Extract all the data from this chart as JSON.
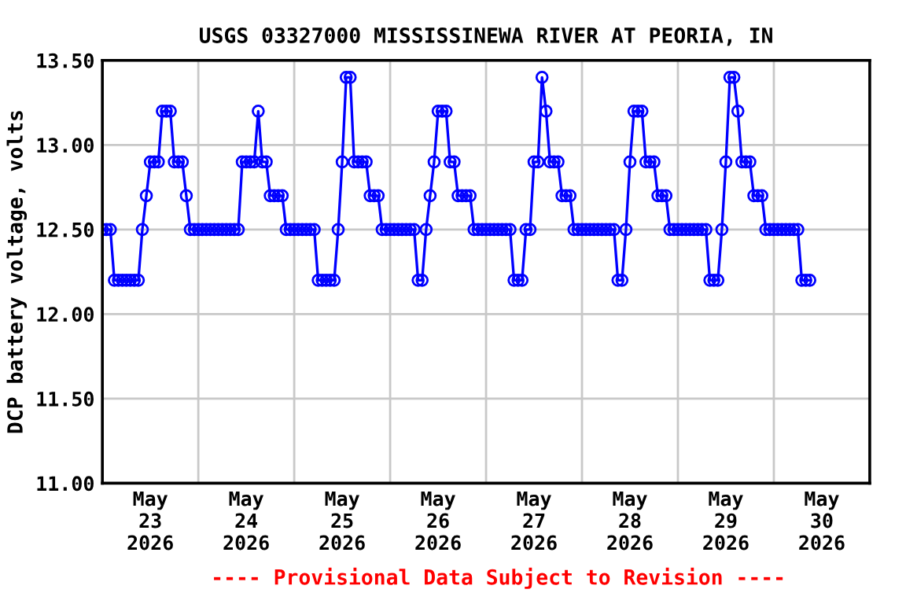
{
  "chart_data": {
    "type": "line",
    "title": "USGS 03327000 MISSISSINEWA RIVER AT PEORIA, IN",
    "ylabel": "DCP battery voltage, volts",
    "annotations": [
      "---- Provisional Data Subject to Revision ----"
    ],
    "xlim": [
      "2026-05-23T00:00",
      "2026-05-31T00:00"
    ],
    "xticks": [
      {
        "value": "2026-05-23T12:00",
        "label": "May\n23\n2026"
      },
      {
        "value": "2026-05-24T12:00",
        "label": "May\n24\n2026"
      },
      {
        "value": "2026-05-25T12:00",
        "label": "May\n25\n2026"
      },
      {
        "value": "2026-05-26T12:00",
        "label": "May\n26\n2026"
      },
      {
        "value": "2026-05-27T12:00",
        "label": "May\n27\n2026"
      },
      {
        "value": "2026-05-28T12:00",
        "label": "May\n28\n2026"
      },
      {
        "value": "2026-05-29T12:00",
        "label": "May\n29\n2026"
      },
      {
        "value": "2026-05-30T12:00",
        "label": "May\n30\n2026"
      },
      {
        "value": "2026-05-24T00:00",
        "label": null
      },
      {
        "value": "2026-05-25T00:00",
        "label": null
      },
      {
        "value": "2026-05-26T00:00",
        "label": null
      },
      {
        "value": "2026-05-27T00:00",
        "label": null
      },
      {
        "value": "2026-05-28T00:00",
        "label": null
      },
      {
        "value": "2026-05-29T00:00",
        "label": null
      },
      {
        "value": "2026-05-30T00:00",
        "label": null
      }
    ],
    "ylim": [
      11,
      13.5
    ],
    "yticks": [
      {
        "value": 11,
        "label": "11.00"
      },
      {
        "value": 11.5,
        "label": "11.50"
      },
      {
        "value": 12,
        "label": "12.00"
      },
      {
        "value": 12.5,
        "label": "12.50"
      },
      {
        "value": 13,
        "label": "13.00"
      },
      {
        "value": 13.5,
        "label": "13.50"
      }
    ],
    "grid": true,
    "marker": "circle",
    "line_style": "solid",
    "series": [
      {
        "color": "#0000ff",
        "x": [
          "2026-05-23T00:00",
          "2026-05-23T01:00",
          "2026-05-23T02:00",
          "2026-05-23T03:00",
          "2026-05-23T04:00",
          "2026-05-23T05:00",
          "2026-05-23T06:00",
          "2026-05-23T07:00",
          "2026-05-23T08:00",
          "2026-05-23T09:00",
          "2026-05-23T10:00",
          "2026-05-23T11:00",
          "2026-05-23T12:00",
          "2026-05-23T13:00",
          "2026-05-23T14:00",
          "2026-05-23T15:00",
          "2026-05-23T16:00",
          "2026-05-23T17:00",
          "2026-05-23T18:00",
          "2026-05-23T19:00",
          "2026-05-23T20:00",
          "2026-05-23T21:00",
          "2026-05-23T22:00",
          "2026-05-23T23:00",
          "2026-05-24T00:00",
          "2026-05-24T01:00",
          "2026-05-24T02:00",
          "2026-05-24T03:00",
          "2026-05-24T04:00",
          "2026-05-24T05:00",
          "2026-05-24T06:00",
          "2026-05-24T07:00",
          "2026-05-24T08:00",
          "2026-05-24T09:00",
          "2026-05-24T10:00",
          "2026-05-24T11:00",
          "2026-05-24T12:00",
          "2026-05-24T13:00",
          "2026-05-24T14:00",
          "2026-05-24T15:00",
          "2026-05-24T16:00",
          "2026-05-24T17:00",
          "2026-05-24T18:00",
          "2026-05-24T19:00",
          "2026-05-24T20:00",
          "2026-05-24T21:00",
          "2026-05-24T22:00",
          "2026-05-24T23:00",
          "2026-05-25T00:00",
          "2026-05-25T01:00",
          "2026-05-25T02:00",
          "2026-05-25T03:00",
          "2026-05-25T04:00",
          "2026-05-25T05:00",
          "2026-05-25T06:00",
          "2026-05-25T07:00",
          "2026-05-25T08:00",
          "2026-05-25T09:00",
          "2026-05-25T10:00",
          "2026-05-25T11:00",
          "2026-05-25T12:00",
          "2026-05-25T13:00",
          "2026-05-25T14:00",
          "2026-05-25T15:00",
          "2026-05-25T16:00",
          "2026-05-25T17:00",
          "2026-05-25T18:00",
          "2026-05-25T19:00",
          "2026-05-25T20:00",
          "2026-05-25T21:00",
          "2026-05-25T22:00",
          "2026-05-25T23:00",
          "2026-05-26T00:00",
          "2026-05-26T01:00",
          "2026-05-26T02:00",
          "2026-05-26T03:00",
          "2026-05-26T04:00",
          "2026-05-26T05:00",
          "2026-05-26T06:00",
          "2026-05-26T07:00",
          "2026-05-26T08:00",
          "2026-05-26T09:00",
          "2026-05-26T10:00",
          "2026-05-26T11:00",
          "2026-05-26T12:00",
          "2026-05-26T13:00",
          "2026-05-26T14:00",
          "2026-05-26T15:00",
          "2026-05-26T16:00",
          "2026-05-26T17:00",
          "2026-05-26T18:00",
          "2026-05-26T19:00",
          "2026-05-26T20:00",
          "2026-05-26T21:00",
          "2026-05-26T22:00",
          "2026-05-26T23:00",
          "2026-05-27T00:00",
          "2026-05-27T01:00",
          "2026-05-27T02:00",
          "2026-05-27T03:00",
          "2026-05-27T04:00",
          "2026-05-27T05:00",
          "2026-05-27T06:00",
          "2026-05-27T07:00",
          "2026-05-27T08:00",
          "2026-05-27T09:00",
          "2026-05-27T10:00",
          "2026-05-27T11:00",
          "2026-05-27T12:00",
          "2026-05-27T13:00",
          "2026-05-27T14:00",
          "2026-05-27T15:00",
          "2026-05-27T16:00",
          "2026-05-27T17:00",
          "2026-05-27T18:00",
          "2026-05-27T19:00",
          "2026-05-27T20:00",
          "2026-05-27T21:00",
          "2026-05-27T22:00",
          "2026-05-27T23:00",
          "2026-05-28T00:00",
          "2026-05-28T01:00",
          "2026-05-28T02:00",
          "2026-05-28T03:00",
          "2026-05-28T04:00",
          "2026-05-28T05:00",
          "2026-05-28T06:00",
          "2026-05-28T07:00",
          "2026-05-28T08:00",
          "2026-05-28T09:00",
          "2026-05-28T10:00",
          "2026-05-28T11:00",
          "2026-05-28T12:00",
          "2026-05-28T13:00",
          "2026-05-28T14:00",
          "2026-05-28T15:00",
          "2026-05-28T16:00",
          "2026-05-28T17:00",
          "2026-05-28T18:00",
          "2026-05-28T19:00",
          "2026-05-28T20:00",
          "2026-05-28T21:00",
          "2026-05-28T22:00",
          "2026-05-28T23:00",
          "2026-05-29T00:00",
          "2026-05-29T01:00",
          "2026-05-29T02:00",
          "2026-05-29T03:00",
          "2026-05-29T04:00",
          "2026-05-29T05:00",
          "2026-05-29T06:00",
          "2026-05-29T07:00",
          "2026-05-29T08:00",
          "2026-05-29T09:00",
          "2026-05-29T10:00",
          "2026-05-29T11:00",
          "2026-05-29T12:00",
          "2026-05-29T13:00",
          "2026-05-29T14:00",
          "2026-05-29T15:00",
          "2026-05-29T16:00",
          "2026-05-29T17:00",
          "2026-05-29T18:00",
          "2026-05-29T19:00",
          "2026-05-29T20:00",
          "2026-05-29T21:00",
          "2026-05-29T22:00",
          "2026-05-29T23:00",
          "2026-05-30T00:00",
          "2026-05-30T01:00",
          "2026-05-30T02:00",
          "2026-05-30T03:00",
          "2026-05-30T04:00",
          "2026-05-30T05:00",
          "2026-05-30T06:00",
          "2026-05-30T07:00",
          "2026-05-30T08:00",
          "2026-05-30T09:00"
        ],
        "values": [
          12.5,
          12.5,
          12.5,
          12.2,
          12.2,
          12.2,
          12.2,
          12.2,
          12.2,
          12.2,
          12.5,
          12.7,
          12.9,
          12.9,
          12.9,
          13.2,
          13.2,
          13.2,
          12.9,
          12.9,
          12.9,
          12.7,
          12.5,
          12.5,
          12.5,
          12.5,
          12.5,
          12.5,
          12.5,
          12.5,
          12.5,
          12.5,
          12.5,
          12.5,
          12.5,
          12.9,
          12.9,
          12.9,
          12.9,
          13.2,
          12.9,
          12.9,
          12.7,
          12.7,
          12.7,
          12.7,
          12.5,
          12.5,
          12.5,
          12.5,
          12.5,
          12.5,
          12.5,
          12.5,
          12.2,
          12.2,
          12.2,
          12.2,
          12.2,
          12.5,
          12.9,
          13.4,
          13.4,
          12.9,
          12.9,
          12.9,
          12.9,
          12.7,
          12.7,
          12.7,
          12.5,
          12.5,
          12.5,
          12.5,
          12.5,
          12.5,
          12.5,
          12.5,
          12.5,
          12.2,
          12.2,
          12.5,
          12.7,
          12.9,
          13.2,
          13.2,
          13.2,
          12.9,
          12.9,
          12.7,
          12.7,
          12.7,
          12.7,
          12.5,
          12.5,
          12.5,
          12.5,
          12.5,
          12.5,
          12.5,
          12.5,
          12.5,
          12.5,
          12.2,
          12.2,
          12.2,
          12.5,
          12.5,
          12.9,
          12.9,
          13.4,
          13.2,
          12.9,
          12.9,
          12.9,
          12.7,
          12.7,
          12.7,
          12.5,
          12.5,
          12.5,
          12.5,
          12.5,
          12.5,
          12.5,
          12.5,
          12.5,
          12.5,
          12.5,
          12.2,
          12.2,
          12.5,
          12.9,
          13.2,
          13.2,
          13.2,
          12.9,
          12.9,
          12.9,
          12.7,
          12.7,
          12.7,
          12.5,
          12.5,
          12.5,
          12.5,
          12.5,
          12.5,
          12.5,
          12.5,
          12.5,
          12.5,
          12.2,
          12.2,
          12.2,
          12.5,
          12.9,
          13.4,
          13.4,
          13.2,
          12.9,
          12.9,
          12.9,
          12.7,
          12.7,
          12.7,
          12.5,
          12.5,
          12.5,
          12.5,
          12.5,
          12.5,
          12.5,
          12.5,
          12.5,
          12.2,
          12.2,
          12.2
        ]
      }
    ]
  }
}
